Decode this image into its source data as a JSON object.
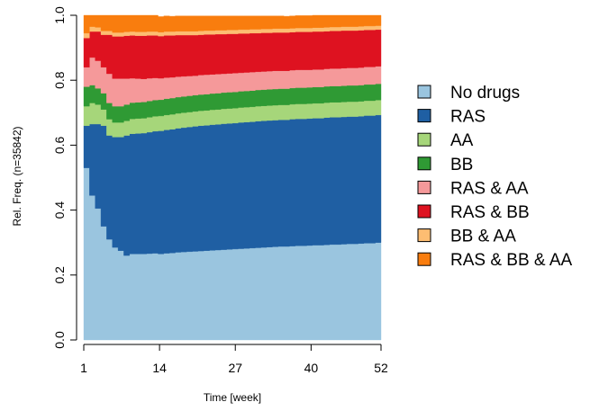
{
  "chart_data": {
    "type": "area",
    "title": "",
    "xlabel": "Time [week]",
    "ylabel": "Rel. Freq. (n=35842)",
    "xlim": [
      1,
      52
    ],
    "ylim": [
      0,
      1
    ],
    "x_ticks": [
      "1",
      "14",
      "27",
      "40",
      "52"
    ],
    "y_ticks": [
      "0.0",
      "0.2",
      "0.4",
      "0.6",
      "0.8",
      "1.0"
    ],
    "legend_position": "right",
    "grid": false,
    "stacked": true,
    "x": [
      1,
      2,
      3,
      4,
      5,
      6,
      7,
      8,
      9,
      10,
      11,
      12,
      13,
      14,
      15,
      16,
      17,
      18,
      19,
      20,
      21,
      22,
      23,
      24,
      25,
      26,
      27,
      28,
      29,
      30,
      31,
      32,
      33,
      34,
      35,
      36,
      37,
      38,
      39,
      40,
      41,
      42,
      43,
      44,
      45,
      46,
      47,
      48,
      49,
      50,
      51,
      52
    ],
    "series": [
      {
        "name": "No drugs",
        "color": "#9ac5df",
        "values": [
          0.53,
          0.445,
          0.405,
          0.35,
          0.31,
          0.285,
          0.275,
          0.26,
          0.265,
          0.265,
          0.265,
          0.266,
          0.267,
          0.265,
          0.267,
          0.268,
          0.27,
          0.271,
          0.272,
          0.273,
          0.274,
          0.275,
          0.276,
          0.277,
          0.278,
          0.279,
          0.28,
          0.281,
          0.282,
          0.283,
          0.284,
          0.285,
          0.286,
          0.287,
          0.288,
          0.288,
          0.289,
          0.29,
          0.29,
          0.291,
          0.292,
          0.292,
          0.293,
          0.294,
          0.294,
          0.295,
          0.296,
          0.296,
          0.297,
          0.298,
          0.298,
          0.3
        ]
      },
      {
        "name": "RAS",
        "color": "#1f5fa3",
        "values": [
          0.13,
          0.22,
          0.26,
          0.31,
          0.32,
          0.34,
          0.35,
          0.37,
          0.37,
          0.371,
          0.372,
          0.374,
          0.376,
          0.379,
          0.38,
          0.381,
          0.382,
          0.383,
          0.384,
          0.385,
          0.386,
          0.386,
          0.387,
          0.387,
          0.388,
          0.388,
          0.388,
          0.389,
          0.389,
          0.389,
          0.39,
          0.39,
          0.39,
          0.39,
          0.39,
          0.39,
          0.391,
          0.391,
          0.391,
          0.391,
          0.391,
          0.391,
          0.392,
          0.392,
          0.392,
          0.392,
          0.392,
          0.392,
          0.392,
          0.393,
          0.393,
          0.393
        ]
      },
      {
        "name": "AA",
        "color": "#a6d67a",
        "values": [
          0.06,
          0.065,
          0.06,
          0.05,
          0.05,
          0.045,
          0.045,
          0.045,
          0.046,
          0.046,
          0.046,
          0.046,
          0.046,
          0.046,
          0.046,
          0.046,
          0.046,
          0.046,
          0.046,
          0.046,
          0.046,
          0.046,
          0.046,
          0.046,
          0.046,
          0.046,
          0.046,
          0.046,
          0.046,
          0.046,
          0.046,
          0.046,
          0.046,
          0.046,
          0.046,
          0.046,
          0.046,
          0.046,
          0.046,
          0.046,
          0.046,
          0.046,
          0.046,
          0.046,
          0.046,
          0.046,
          0.046,
          0.046,
          0.046,
          0.046,
          0.046,
          0.046
        ]
      },
      {
        "name": "BB",
        "color": "#2f9a34",
        "values": [
          0.06,
          0.055,
          0.05,
          0.05,
          0.05,
          0.05,
          0.05,
          0.05,
          0.05,
          0.05,
          0.05,
          0.05,
          0.05,
          0.05,
          0.05,
          0.05,
          0.05,
          0.05,
          0.05,
          0.05,
          0.05,
          0.05,
          0.05,
          0.05,
          0.05,
          0.05,
          0.05,
          0.05,
          0.05,
          0.05,
          0.05,
          0.05,
          0.05,
          0.05,
          0.05,
          0.05,
          0.05,
          0.05,
          0.05,
          0.05,
          0.05,
          0.05,
          0.05,
          0.05,
          0.05,
          0.05,
          0.05,
          0.05,
          0.05,
          0.05,
          0.05,
          0.05
        ]
      },
      {
        "name": "RAS & AA",
        "color": "#f5999a",
        "values": [
          0.06,
          0.085,
          0.085,
          0.08,
          0.09,
          0.085,
          0.085,
          0.08,
          0.075,
          0.073,
          0.071,
          0.07,
          0.068,
          0.066,
          0.065,
          0.064,
          0.063,
          0.062,
          0.061,
          0.06,
          0.06,
          0.06,
          0.059,
          0.059,
          0.058,
          0.058,
          0.058,
          0.057,
          0.057,
          0.057,
          0.056,
          0.056,
          0.056,
          0.056,
          0.055,
          0.055,
          0.055,
          0.055,
          0.055,
          0.054,
          0.054,
          0.054,
          0.054,
          0.054,
          0.054,
          0.054,
          0.054,
          0.054,
          0.054,
          0.054,
          0.054,
          0.054
        ]
      },
      {
        "name": "RAS & BB",
        "color": "#de1220",
        "values": [
          0.09,
          0.08,
          0.09,
          0.1,
          0.12,
          0.13,
          0.13,
          0.132,
          0.132,
          0.132,
          0.133,
          0.132,
          0.131,
          0.13,
          0.13,
          0.129,
          0.128,
          0.127,
          0.126,
          0.125,
          0.124,
          0.124,
          0.123,
          0.123,
          0.122,
          0.122,
          0.121,
          0.121,
          0.12,
          0.12,
          0.119,
          0.119,
          0.118,
          0.118,
          0.118,
          0.118,
          0.117,
          0.117,
          0.117,
          0.117,
          0.117,
          0.117,
          0.116,
          0.116,
          0.116,
          0.116,
          0.115,
          0.115,
          0.115,
          0.114,
          0.114,
          0.113
        ]
      },
      {
        "name": "BB & AA",
        "color": "#fdbd72",
        "values": [
          0.015,
          0.015,
          0.013,
          0.012,
          0.012,
          0.012,
          0.012,
          0.012,
          0.012,
          0.012,
          0.012,
          0.012,
          0.012,
          0.012,
          0.012,
          0.012,
          0.012,
          0.012,
          0.012,
          0.012,
          0.012,
          0.012,
          0.012,
          0.012,
          0.012,
          0.012,
          0.012,
          0.012,
          0.012,
          0.012,
          0.012,
          0.012,
          0.012,
          0.012,
          0.012,
          0.012,
          0.012,
          0.012,
          0.012,
          0.012,
          0.012,
          0.012,
          0.012,
          0.012,
          0.012,
          0.012,
          0.012,
          0.012,
          0.012,
          0.012,
          0.012,
          0.012
        ]
      },
      {
        "name": "RAS & BB & AA",
        "color": "#f97d0e",
        "values": [
          0.055,
          0.035,
          0.037,
          0.048,
          0.048,
          0.053,
          0.053,
          0.051,
          0.05,
          0.051,
          0.051,
          0.05,
          0.05,
          0.048,
          0.048,
          0.047,
          0.047,
          0.047,
          0.047,
          0.047,
          0.046,
          0.045,
          0.045,
          0.044,
          0.044,
          0.043,
          0.043,
          0.042,
          0.042,
          0.041,
          0.041,
          0.04,
          0.04,
          0.039,
          0.039,
          0.038,
          0.038,
          0.038,
          0.038,
          0.038,
          0.038,
          0.038,
          0.037,
          0.036,
          0.037,
          0.037,
          0.037,
          0.037,
          0.036,
          0.035,
          0.036,
          0.035
        ]
      }
    ]
  }
}
